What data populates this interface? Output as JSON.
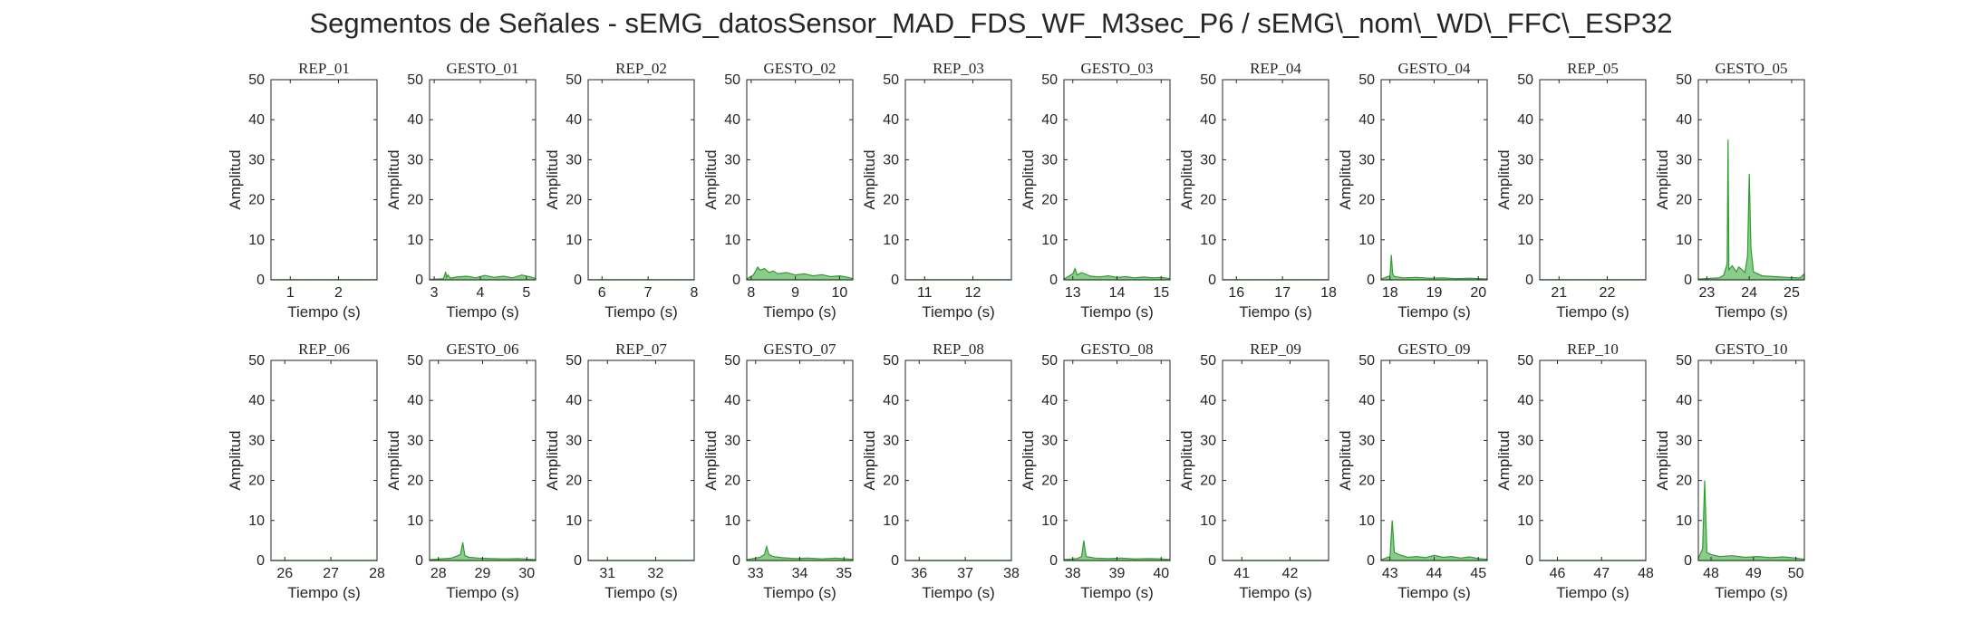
{
  "figure": {
    "title": "Segmentos de Señales - sEMG_datosSensor_MAD_FDS_WF_M3sec_P6 / sEMG\\_nom\\_WD\\_FFC\\_ESP32"
  },
  "style": {
    "series_color": "#2ca02c",
    "axis_color": "#262626"
  },
  "chart_data": [
    {
      "type": "area",
      "title": "REP_01",
      "xlabel": "Tiempo (s)",
      "ylabel": "Amplitud",
      "xlim": [
        0.6,
        2.8
      ],
      "ylim": [
        0,
        50
      ],
      "xticks": [
        1,
        2
      ],
      "yticks": [
        0,
        10,
        20,
        30,
        40,
        50
      ],
      "grid": false,
      "series": [
        {
          "x": [
            0.6,
            2.8
          ],
          "y": [
            0.05,
            0.05
          ]
        }
      ]
    },
    {
      "type": "area",
      "title": "GESTO_01",
      "xlabel": "Tiempo (s)",
      "ylabel": "Amplitud",
      "xlim": [
        2.9,
        5.2
      ],
      "ylim": [
        0,
        50
      ],
      "xticks": [
        3,
        4,
        5
      ],
      "yticks": [
        0,
        10,
        20,
        30,
        40,
        50
      ],
      "grid": false,
      "series": [
        {
          "x": [
            2.9,
            3.2,
            3.25,
            3.27,
            3.3,
            3.35,
            3.5,
            3.7,
            3.9,
            4.1,
            4.3,
            4.5,
            4.7,
            4.9,
            5.1,
            5.2
          ],
          "y": [
            0.1,
            0.3,
            2,
            0.6,
            1.2,
            0.4,
            0.7,
            0.9,
            0.5,
            1.1,
            0.6,
            0.9,
            0.5,
            1.2,
            0.7,
            0.3
          ]
        }
      ]
    },
    {
      "type": "area",
      "title": "REP_02",
      "xlabel": "Tiempo (s)",
      "ylabel": "Amplitud",
      "xlim": [
        5.7,
        8
      ],
      "ylim": [
        0,
        50
      ],
      "xticks": [
        6,
        7,
        8
      ],
      "yticks": [
        0,
        10,
        20,
        30,
        40,
        50
      ],
      "grid": false,
      "series": [
        {
          "x": [
            5.7,
            8
          ],
          "y": [
            0.05,
            0.05
          ]
        }
      ]
    },
    {
      "type": "area",
      "title": "GESTO_02",
      "xlabel": "Tiempo (s)",
      "ylabel": "Amplitud",
      "xlim": [
        7.9,
        10.3
      ],
      "ylim": [
        0,
        50
      ],
      "xticks": [
        8,
        9,
        10
      ],
      "yticks": [
        0,
        10,
        20,
        30,
        40,
        50
      ],
      "grid": false,
      "series": [
        {
          "x": [
            7.9,
            8.05,
            8.15,
            8.2,
            8.3,
            8.4,
            8.5,
            8.6,
            8.8,
            9,
            9.2,
            9.4,
            9.6,
            9.8,
            10,
            10.2,
            10.3
          ],
          "y": [
            0.2,
            1.2,
            3.2,
            2.4,
            2.8,
            1.8,
            2.2,
            1.5,
            1.8,
            1.2,
            1.5,
            1,
            1.3,
            0.8,
            1,
            0.6,
            0.3
          ]
        }
      ]
    },
    {
      "type": "area",
      "title": "REP_03",
      "xlabel": "Tiempo (s)",
      "ylabel": "Amplitud",
      "xlim": [
        10.6,
        12.8
      ],
      "ylim": [
        0,
        50
      ],
      "xticks": [
        11,
        12
      ],
      "yticks": [
        0,
        10,
        20,
        30,
        40,
        50
      ],
      "grid": false,
      "series": [
        {
          "x": [
            10.6,
            12.8
          ],
          "y": [
            0.05,
            0.05
          ]
        }
      ]
    },
    {
      "type": "area",
      "title": "GESTO_03",
      "xlabel": "Tiempo (s)",
      "ylabel": "Amplitud",
      "xlim": [
        12.8,
        15.2
      ],
      "ylim": [
        0,
        50
      ],
      "xticks": [
        13,
        14,
        15
      ],
      "yticks": [
        0,
        10,
        20,
        30,
        40,
        50
      ],
      "grid": false,
      "series": [
        {
          "x": [
            12.8,
            13,
            13.05,
            13.1,
            13.2,
            13.4,
            13.6,
            13.8,
            14,
            14.2,
            14.4,
            14.6,
            14.8,
            15,
            15.2
          ],
          "y": [
            0.2,
            1.5,
            2.8,
            1.2,
            1.8,
            0.9,
            0.7,
            1,
            0.6,
            0.8,
            0.5,
            0.7,
            0.5,
            0.6,
            0.3
          ]
        }
      ]
    },
    {
      "type": "area",
      "title": "REP_04",
      "xlabel": "Tiempo (s)",
      "ylabel": "Amplitud",
      "xlim": [
        15.7,
        18
      ],
      "ylim": [
        0,
        50
      ],
      "xticks": [
        16,
        17,
        18
      ],
      "yticks": [
        0,
        10,
        20,
        30,
        40,
        50
      ],
      "grid": false,
      "series": [
        {
          "x": [
            15.7,
            18
          ],
          "y": [
            0.05,
            0.05
          ]
        }
      ]
    },
    {
      "type": "area",
      "title": "GESTO_04",
      "xlabel": "Tiempo (s)",
      "ylabel": "Amplitud",
      "xlim": [
        17.8,
        20.2
      ],
      "ylim": [
        0,
        50
      ],
      "xticks": [
        18,
        19,
        20
      ],
      "yticks": [
        0,
        10,
        20,
        30,
        40,
        50
      ],
      "grid": false,
      "series": [
        {
          "x": [
            17.8,
            18,
            18.03,
            18.06,
            18.1,
            18.3,
            18.6,
            18.9,
            19.2,
            19.5,
            19.8,
            20.2
          ],
          "y": [
            0.2,
            1,
            6.2,
            1.5,
            0.8,
            0.5,
            0.6,
            0.4,
            0.5,
            0.3,
            0.4,
            0.2
          ]
        }
      ]
    },
    {
      "type": "area",
      "title": "REP_05",
      "xlabel": "Tiempo (s)",
      "ylabel": "Amplitud",
      "xlim": [
        20.6,
        22.8
      ],
      "ylim": [
        0,
        50
      ],
      "xticks": [
        21,
        22
      ],
      "yticks": [
        0,
        10,
        20,
        30,
        40,
        50
      ],
      "grid": false,
      "series": [
        {
          "x": [
            20.6,
            22.8
          ],
          "y": [
            0.05,
            0.05
          ]
        }
      ]
    },
    {
      "type": "area",
      "title": "GESTO_05",
      "xlabel": "Tiempo (s)",
      "ylabel": "Amplitud",
      "xlim": [
        22.8,
        25.3
      ],
      "ylim": [
        0,
        50
      ],
      "xticks": [
        23,
        24,
        25
      ],
      "yticks": [
        0,
        10,
        20,
        30,
        40,
        50
      ],
      "grid": false,
      "series": [
        {
          "x": [
            22.8,
            23.3,
            23.4,
            23.48,
            23.5,
            23.52,
            23.6,
            23.7,
            23.75,
            23.8,
            23.9,
            23.96,
            24,
            24.04,
            24.1,
            24.3,
            24.6,
            24.9,
            25.2,
            25.3
          ],
          "y": [
            0.2,
            0.5,
            1.2,
            4,
            35,
            2.5,
            3.5,
            2,
            3.2,
            2.8,
            1.8,
            6,
            26.5,
            8,
            2,
            1,
            0.8,
            0.6,
            0.5,
            1.5
          ]
        }
      ]
    },
    {
      "type": "area",
      "title": "REP_06",
      "xlabel": "Tiempo (s)",
      "ylabel": "Amplitud",
      "xlim": [
        25.7,
        28
      ],
      "ylim": [
        0,
        50
      ],
      "xticks": [
        26,
        27,
        28
      ],
      "yticks": [
        0,
        10,
        20,
        30,
        40,
        50
      ],
      "grid": false,
      "series": [
        {
          "x": [
            25.7,
            28
          ],
          "y": [
            0.05,
            0.05
          ]
        }
      ]
    },
    {
      "type": "area",
      "title": "GESTO_06",
      "xlabel": "Tiempo (s)",
      "ylabel": "Amplitud",
      "xlim": [
        27.8,
        30.2
      ],
      "ylim": [
        0,
        50
      ],
      "xticks": [
        28,
        29,
        30
      ],
      "yticks": [
        0,
        10,
        20,
        30,
        40,
        50
      ],
      "grid": false,
      "series": [
        {
          "x": [
            27.8,
            28.3,
            28.5,
            28.55,
            28.6,
            28.7,
            28.9,
            29.2,
            29.5,
            29.8,
            30.2
          ],
          "y": [
            0.2,
            0.6,
            1.5,
            4.5,
            1.2,
            0.8,
            0.6,
            0.5,
            0.4,
            0.5,
            0.2
          ]
        }
      ]
    },
    {
      "type": "area",
      "title": "REP_07",
      "xlabel": "Tiempo (s)",
      "ylabel": "Amplitud",
      "xlim": [
        30.6,
        32.8
      ],
      "ylim": [
        0,
        50
      ],
      "xticks": [
        31,
        32
      ],
      "yticks": [
        0,
        10,
        20,
        30,
        40,
        50
      ],
      "grid": false,
      "series": [
        {
          "x": [
            30.6,
            32.8
          ],
          "y": [
            0.05,
            0.05
          ]
        }
      ]
    },
    {
      "type": "area",
      "title": "GESTO_07",
      "xlabel": "Tiempo (s)",
      "ylabel": "Amplitud",
      "xlim": [
        32.8,
        35.2
      ],
      "ylim": [
        0,
        50
      ],
      "xticks": [
        33,
        34,
        35
      ],
      "yticks": [
        0,
        10,
        20,
        30,
        40,
        50
      ],
      "grid": false,
      "series": [
        {
          "x": [
            32.8,
            33.1,
            33.2,
            33.25,
            33.3,
            33.4,
            33.6,
            33.9,
            34.2,
            34.5,
            34.8,
            35.2
          ],
          "y": [
            0.2,
            0.8,
            1.5,
            3.5,
            1.5,
            1,
            0.7,
            0.5,
            0.6,
            0.4,
            0.6,
            0.3
          ]
        }
      ]
    },
    {
      "type": "area",
      "title": "REP_08",
      "xlabel": "Tiempo (s)",
      "ylabel": "Amplitud",
      "xlim": [
        35.7,
        38
      ],
      "ylim": [
        0,
        50
      ],
      "xticks": [
        36,
        37,
        38
      ],
      "yticks": [
        0,
        10,
        20,
        30,
        40,
        50
      ],
      "grid": false,
      "series": [
        {
          "x": [
            35.7,
            38
          ],
          "y": [
            0.05,
            0.05
          ]
        }
      ]
    },
    {
      "type": "area",
      "title": "GESTO_08",
      "xlabel": "Tiempo (s)",
      "ylabel": "Amplitud",
      "xlim": [
        37.8,
        40.2
      ],
      "ylim": [
        0,
        50
      ],
      "xticks": [
        38,
        39,
        40
      ],
      "yticks": [
        0,
        10,
        20,
        30,
        40,
        50
      ],
      "grid": false,
      "series": [
        {
          "x": [
            37.8,
            38.1,
            38.2,
            38.25,
            38.3,
            38.5,
            38.8,
            39.1,
            39.4,
            39.7,
            40,
            40.2
          ],
          "y": [
            0.2,
            0.5,
            1,
            5,
            1,
            0.6,
            0.5,
            0.6,
            0.4,
            0.5,
            0.4,
            0.2
          ]
        }
      ]
    },
    {
      "type": "area",
      "title": "REP_09",
      "xlabel": "Tiempo (s)",
      "ylabel": "Amplitud",
      "xlim": [
        40.6,
        42.8
      ],
      "ylim": [
        0,
        50
      ],
      "xticks": [
        41,
        42
      ],
      "yticks": [
        0,
        10,
        20,
        30,
        40,
        50
      ],
      "grid": false,
      "series": [
        {
          "x": [
            40.6,
            42.8
          ],
          "y": [
            0.05,
            0.05
          ]
        }
      ]
    },
    {
      "type": "area",
      "title": "GESTO_09",
      "xlabel": "Tiempo (s)",
      "ylabel": "Amplitud",
      "xlim": [
        42.8,
        45.2
      ],
      "ylim": [
        0,
        50
      ],
      "xticks": [
        43,
        44,
        45
      ],
      "yticks": [
        0,
        10,
        20,
        30,
        40,
        50
      ],
      "grid": false,
      "series": [
        {
          "x": [
            42.8,
            43,
            43.05,
            43.1,
            43.2,
            43.4,
            43.6,
            43.8,
            44,
            44.2,
            44.4,
            44.6,
            44.8,
            45,
            45.2
          ],
          "y": [
            0.2,
            1,
            10,
            2,
            1.5,
            0.8,
            1,
            0.7,
            1.3,
            0.8,
            1,
            0.6,
            0.9,
            0.5,
            0.3
          ]
        }
      ]
    },
    {
      "type": "area",
      "title": "REP_10",
      "xlabel": "Tiempo (s)",
      "ylabel": "Amplitud",
      "xlim": [
        45.6,
        48
      ],
      "ylim": [
        0,
        50
      ],
      "xticks": [
        46,
        47,
        48
      ],
      "yticks": [
        0,
        10,
        20,
        30,
        40,
        50
      ],
      "grid": false,
      "series": [
        {
          "x": [
            45.6,
            48
          ],
          "y": [
            0.05,
            0.05
          ]
        }
      ]
    },
    {
      "type": "area",
      "title": "GESTO_10",
      "xlabel": "Tiempo (s)",
      "ylabel": "Amplitud",
      "xlim": [
        47.7,
        50.2
      ],
      "ylim": [
        0,
        50
      ],
      "xticks": [
        48,
        49,
        50
      ],
      "yticks": [
        0,
        10,
        20,
        30,
        40,
        50
      ],
      "grid": false,
      "series": [
        {
          "x": [
            47.7,
            47.8,
            47.85,
            47.9,
            48,
            48.2,
            48.5,
            48.8,
            49.1,
            49.4,
            49.7,
            50,
            50.2
          ],
          "y": [
            0.5,
            3,
            20,
            2,
            1.5,
            1,
            1.2,
            0.8,
            1,
            0.7,
            0.9,
            0.6,
            0.3
          ]
        }
      ]
    }
  ]
}
